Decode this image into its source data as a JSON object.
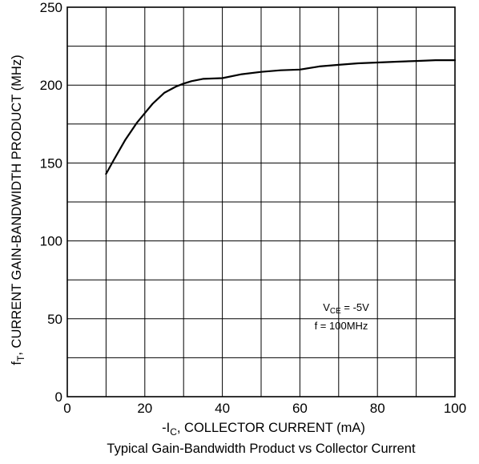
{
  "chart_data": {
    "type": "line",
    "title": "Typical Gain-Bandwidth Product vs  Collector Current",
    "xlabel": {
      "pre": "-I",
      "sub": "C",
      "post": ", COLLECTOR CURRENT (mA)"
    },
    "ylabel": {
      "pre": "f",
      "sub": "T",
      "post": ", CURRENT GAIN-BANDWIDTH PRODUCT (MHz)"
    },
    "xlim": [
      0,
      100
    ],
    "ylim": [
      0,
      250
    ],
    "x_ticks": [
      0,
      20,
      40,
      60,
      80,
      100
    ],
    "y_ticks": [
      0,
      50,
      100,
      150,
      200,
      250
    ],
    "x_grid_step": 10,
    "y_grid_step": 25,
    "grid": true,
    "annotation": {
      "line1_pre": "V",
      "line1_sub": "CE",
      "line1_post": " = -5V",
      "line2": "f = 100MHz"
    },
    "series": [
      {
        "x": [
          10,
          12,
          15,
          18,
          20,
          22,
          25,
          28,
          30,
          32,
          35,
          40,
          45,
          50,
          55,
          60,
          65,
          70,
          75,
          80,
          85,
          90,
          95,
          100
        ],
        "values": [
          143,
          152,
          165,
          176,
          182,
          188,
          195,
          199,
          201,
          202.5,
          204,
          204.5,
          207,
          208.5,
          209.5,
          210,
          212,
          213,
          214,
          214.5,
          215,
          215.5,
          216,
          216
        ]
      }
    ]
  }
}
